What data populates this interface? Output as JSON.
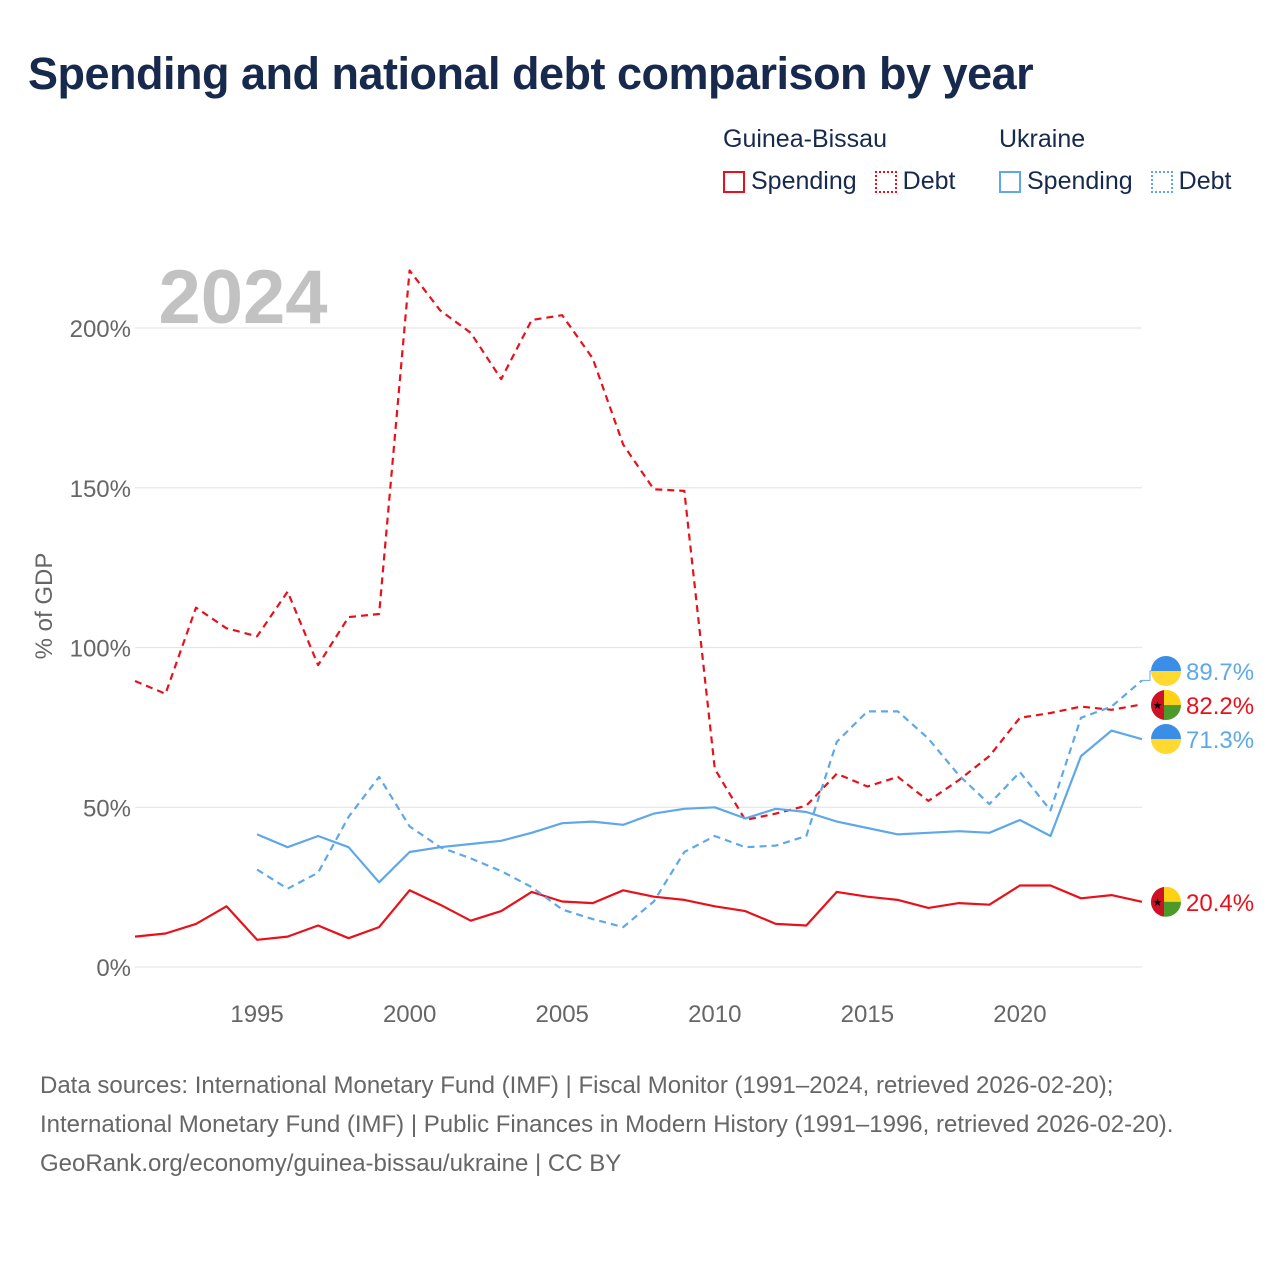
{
  "title": "Spending and national debt comparison by year",
  "legend": {
    "groups": [
      {
        "name": "Guinea-Bissau",
        "items": [
          {
            "label": "Spending",
            "style": "solid",
            "color": "#e8111b"
          },
          {
            "label": "Debt",
            "style": "dotted",
            "color": "#e8111b"
          }
        ]
      },
      {
        "name": "Ukraine",
        "items": [
          {
            "label": "Spending",
            "style": "solid",
            "color": "#5fa8e8"
          },
          {
            "label": "Debt",
            "style": "dotted",
            "color": "#5fa8e8"
          }
        ]
      }
    ]
  },
  "chart_data": {
    "type": "line",
    "year_label": "2024",
    "ylabel": "% of GDP",
    "xlim": [
      1991,
      2024
    ],
    "ylim": [
      0,
      220
    ],
    "x_ticks": [
      1995,
      2000,
      2005,
      2010,
      2015,
      2020
    ],
    "y_ticks": [
      {
        "value": 0,
        "label": "0%"
      },
      {
        "value": 50,
        "label": "50%"
      },
      {
        "value": 100,
        "label": "100%"
      },
      {
        "value": 150,
        "label": "150%"
      },
      {
        "value": 200,
        "label": "200%"
      }
    ],
    "series": [
      {
        "name": "Guinea-Bissau Debt",
        "country": "Guinea-Bissau",
        "style": "dashed",
        "color": "#e8111b",
        "flag": "gw",
        "x": [
          1991,
          1992,
          1993,
          1994,
          1995,
          1996,
          1997,
          1998,
          1999,
          2000,
          2001,
          2002,
          2003,
          2004,
          2005,
          2006,
          2007,
          2008,
          2009,
          2010,
          2011,
          2012,
          2013,
          2014,
          2015,
          2016,
          2017,
          2018,
          2019,
          2020,
          2021,
          2022,
          2023,
          2024
        ],
        "values": [
          89.5,
          85.5,
          112.5,
          106,
          103.5,
          117.5,
          94.5,
          109.5,
          110.5,
          218,
          205.5,
          198.5,
          184,
          202.5,
          204,
          190.5,
          163.5,
          149.5,
          149,
          62,
          46,
          48,
          50.5,
          60.5,
          56.5,
          59.5,
          52,
          58.5,
          66,
          78,
          79.5,
          81.5,
          80.5,
          82.2
        ],
        "end_label": "82.2%"
      },
      {
        "name": "Guinea-Bissau Spending",
        "country": "Guinea-Bissau",
        "style": "solid",
        "color": "#e8111b",
        "flag": "gw",
        "x": [
          1991,
          1992,
          1993,
          1994,
          1995,
          1996,
          1997,
          1998,
          1999,
          2000,
          2001,
          2002,
          2003,
          2004,
          2005,
          2006,
          2007,
          2008,
          2009,
          2010,
          2011,
          2012,
          2013,
          2014,
          2015,
          2016,
          2017,
          2018,
          2019,
          2020,
          2021,
          2022,
          2023,
          2024
        ],
        "values": [
          9.5,
          10.5,
          13.5,
          19,
          8.5,
          9.5,
          13,
          9,
          12.5,
          24,
          19.5,
          14.5,
          17.5,
          23.5,
          20.5,
          20,
          24,
          22,
          21,
          19,
          17.5,
          13.5,
          13,
          23.5,
          22,
          21,
          18.5,
          20,
          19.5,
          25.5,
          25.5,
          21.5,
          22.5,
          20.4
        ],
        "end_label": "20.4%"
      },
      {
        "name": "Ukraine Debt",
        "country": "Ukraine",
        "style": "dashed",
        "color": "#5fa8e8",
        "flag": "ua",
        "x": [
          1995,
          1996,
          1997,
          1998,
          1999,
          2000,
          2001,
          2002,
          2003,
          2004,
          2005,
          2006,
          2007,
          2008,
          2009,
          2010,
          2011,
          2012,
          2013,
          2014,
          2015,
          2016,
          2017,
          2018,
          2019,
          2020,
          2021,
          2022,
          2023,
          2024
        ],
        "values": [
          30.5,
          24.5,
          29.5,
          47,
          59.5,
          44,
          37.5,
          34,
          30,
          25,
          18,
          15,
          12.5,
          20.5,
          36,
          41,
          37.5,
          38,
          41,
          70.5,
          80,
          80,
          71.5,
          60,
          51,
          61,
          49,
          78,
          81.5,
          89.7
        ],
        "end_label": "89.7%"
      },
      {
        "name": "Ukraine Spending",
        "country": "Ukraine",
        "style": "solid",
        "color": "#5fa8e8",
        "flag": "ua",
        "x": [
          1995,
          1996,
          1997,
          1998,
          1999,
          2000,
          2001,
          2002,
          2003,
          2004,
          2005,
          2006,
          2007,
          2008,
          2009,
          2010,
          2011,
          2012,
          2013,
          2014,
          2015,
          2016,
          2017,
          2018,
          2019,
          2020,
          2021,
          2022,
          2023,
          2024
        ],
        "values": [
          41.5,
          37.5,
          41,
          37.5,
          26.5,
          36,
          37.5,
          38.5,
          39.5,
          42,
          45,
          45.5,
          44.5,
          48,
          49.5,
          50,
          46.5,
          49.5,
          48.5,
          45.5,
          43.5,
          41.5,
          42,
          42.5,
          42,
          46,
          41,
          66,
          74,
          71.3
        ],
        "end_label": "71.3%"
      }
    ]
  },
  "sources": {
    "line1": "Data sources: International Monetary Fund (IMF) | Fiscal Monitor (1991–2024, retrieved 2026-02-20); International Monetary Fund (IMF) | Public Finances in Modern History (1991–1996, retrieved 2026-02-20).",
    "line2": "GeoRank.org/economy/guinea-bissau/ukraine | CC BY"
  }
}
